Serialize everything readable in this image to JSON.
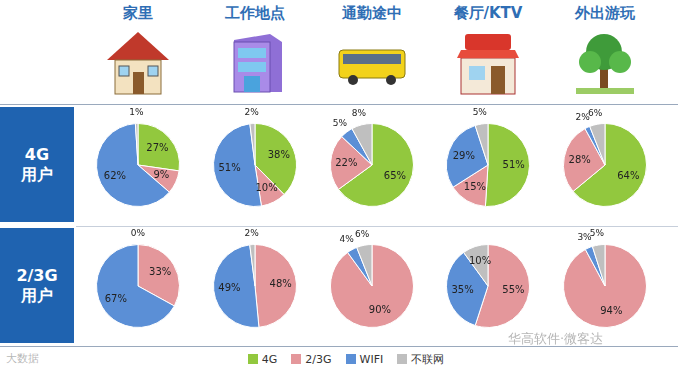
{
  "columns": [
    "家里",
    "工作地点",
    "通勤途中",
    "餐厅/KTV",
    "外出游玩"
  ],
  "rows": [
    [
      "4G",
      "用户"
    ],
    [
      "2/3G",
      "用户"
    ]
  ],
  "watermarks": [
    "大数据",
    "华高软件·微客达"
  ],
  "chart_data": [
    {
      "type": "pie",
      "categories": [
        "4G",
        "2/3G",
        "WIFI",
        "不联网"
      ],
      "values": [
        27,
        9,
        62,
        1
      ],
      "value_labels": [
        "27%",
        "9%",
        "62%",
        "1%"
      ],
      "colors": [
        "#92c83e",
        "#e4979b",
        "#5b8fd6",
        "#bfbfbf"
      ],
      "data_labels": true
    },
    {
      "type": "pie",
      "categories": [
        "4G",
        "2/3G",
        "WIFI",
        "不联网"
      ],
      "values": [
        38,
        10,
        51,
        2
      ],
      "value_labels": [
        "38%",
        "10%",
        "51%",
        "2%"
      ],
      "colors": [
        "#92c83e",
        "#e4979b",
        "#5b8fd6",
        "#bfbfbf"
      ],
      "data_labels": true
    },
    {
      "type": "pie",
      "categories": [
        "4G",
        "2/3G",
        "WIFI",
        "不联网"
      ],
      "values": [
        65,
        22,
        5,
        8
      ],
      "value_labels": [
        "65%",
        "22%",
        "5%",
        "8%"
      ],
      "colors": [
        "#92c83e",
        "#e4979b",
        "#5b8fd6",
        "#bfbfbf"
      ],
      "data_labels": true
    },
    {
      "type": "pie",
      "categories": [
        "4G",
        "2/3G",
        "WIFI",
        "不联网"
      ],
      "values": [
        51,
        15,
        29,
        5
      ],
      "value_labels": [
        "51%",
        "15%",
        "29%",
        "5%"
      ],
      "colors": [
        "#92c83e",
        "#e4979b",
        "#5b8fd6",
        "#bfbfbf"
      ],
      "data_labels": true
    },
    {
      "type": "pie",
      "categories": [
        "4G",
        "2/3G",
        "WIFI",
        "不联网"
      ],
      "values": [
        64,
        28,
        2,
        6
      ],
      "value_labels": [
        "64%",
        "28%",
        "2%",
        "6%"
      ],
      "colors": [
        "#92c83e",
        "#e4979b",
        "#5b8fd6",
        "#bfbfbf"
      ],
      "data_labels": true
    },
    {
      "type": "pie",
      "categories": [
        "4G",
        "2/3G",
        "WIFI",
        "不联网"
      ],
      "values": [
        null,
        33,
        67,
        0
      ],
      "value_labels": [
        null,
        "33%",
        "67%",
        "0%"
      ],
      "colors": [
        "#92c83e",
        "#e4979b",
        "#5b8fd6",
        "#bfbfbf"
      ],
      "data_labels": true
    },
    {
      "type": "pie",
      "categories": [
        "4G",
        "2/3G",
        "WIFI",
        "不联网"
      ],
      "values": [
        null,
        48,
        49,
        2
      ],
      "value_labels": [
        null,
        "48%",
        "49%",
        "2%"
      ],
      "colors": [
        "#92c83e",
        "#e4979b",
        "#5b8fd6",
        "#bfbfbf"
      ],
      "data_labels": true
    },
    {
      "type": "pie",
      "categories": [
        "4G",
        "2/3G",
        "WIFI",
        "不联网"
      ],
      "values": [
        null,
        90,
        4,
        6
      ],
      "value_labels": [
        null,
        "90%",
        "4%",
        "6%"
      ],
      "colors": [
        "#92c83e",
        "#e4979b",
        "#5b8fd6",
        "#bfbfbf"
      ],
      "data_labels": true
    },
    {
      "type": "pie",
      "categories": [
        "4G",
        "2/3G",
        "WIFI",
        "不联网"
      ],
      "values": [
        null,
        55,
        35,
        10
      ],
      "value_labels": [
        null,
        "55%",
        "35%",
        "10%"
      ],
      "colors": [
        "#92c83e",
        "#e4979b",
        "#5b8fd6",
        "#bfbfbf"
      ],
      "data_labels": true
    },
    {
      "type": "pie",
      "categories": [
        "4G",
        "2/3G",
        "WIFI",
        "不联网"
      ],
      "values": [
        null,
        94,
        3,
        5
      ],
      "value_labels": [
        null,
        "94%",
        "3%",
        "5%"
      ],
      "colors": [
        "#92c83e",
        "#e4979b",
        "#5b8fd6",
        "#bfbfbf"
      ],
      "data_labels": true
    }
  ]
}
